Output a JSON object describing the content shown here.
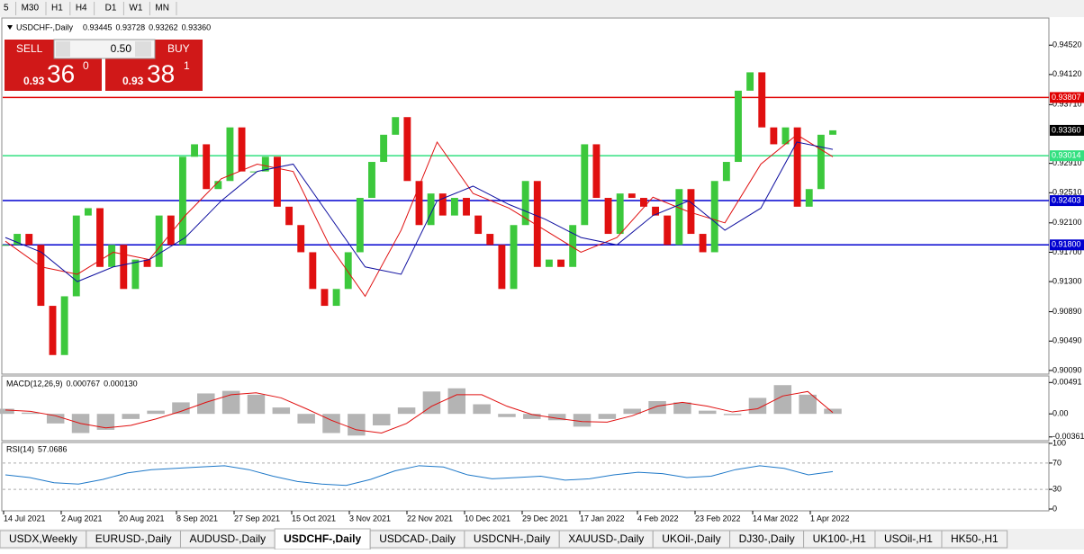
{
  "toolbar": {
    "timeframes": [
      "5",
      "M30",
      "H1",
      "H4",
      "D1",
      "W1",
      "MN"
    ]
  },
  "trade_panel": {
    "sell": "SELL",
    "buy": "BUY",
    "lot": {
      "value": 0.5,
      "label": "0.50"
    },
    "bid": {
      "prefix": "0.93",
      "big": "36",
      "sup": "0"
    },
    "ask": {
      "prefix": "0.93",
      "big": "38",
      "sup": "1"
    }
  },
  "chart_data": [
    {
      "type": "candlestick",
      "title": "USDCHF-,Daily",
      "ohlc_labels": [
        {
          "value": 0.93445,
          "label": "0.93445"
        },
        {
          "value": 0.93728,
          "label": "0.93728"
        },
        {
          "value": 0.93262,
          "label": "0.93262"
        },
        {
          "value": 0.9336,
          "label": "0.93360"
        }
      ],
      "values": [
        0.918,
        0.9195,
        0.918,
        0.9097,
        0.903,
        0.911,
        0.922,
        0.923,
        0.915,
        0.918,
        0.912,
        0.916,
        0.915,
        0.922,
        0.918,
        0.93,
        0.9317,
        0.9256,
        0.9267,
        0.934,
        0.928,
        0.928,
        0.93,
        0.9232,
        0.9207,
        0.917,
        0.912,
        0.9097,
        0.912,
        0.917,
        0.9244,
        0.9293,
        0.933,
        0.9354,
        0.9267,
        0.9207,
        0.925,
        0.922,
        0.9244,
        0.922,
        0.9195,
        0.918,
        0.912,
        0.9207,
        0.9267,
        0.915,
        0.916,
        0.915,
        0.9207,
        0.9317,
        0.9244,
        0.9195,
        0.925,
        0.9244,
        0.9232,
        0.922,
        0.918,
        0.9256,
        0.9195,
        0.917,
        0.9267,
        0.9293,
        0.939,
        0.9415,
        0.934,
        0.9317,
        0.934,
        0.9232,
        0.9256,
        0.933,
        0.9336
      ],
      "up_color": "#3cc83c",
      "down_color": "#e01010",
      "series": [
        {
          "color": "#e01010",
          "values": [
            0.9185,
            0.915,
            0.914,
            0.917,
            0.916,
            0.922,
            0.927,
            0.929,
            0.928,
            0.918,
            0.911,
            0.92,
            0.932,
            0.925,
            0.923,
            0.92,
            0.917,
            0.919,
            0.9245,
            0.9225,
            0.921,
            0.929,
            0.933,
            0.93
          ]
        },
        {
          "color": "#1010a0",
          "values": [
            0.919,
            0.917,
            0.913,
            0.915,
            0.916,
            0.919,
            0.924,
            0.928,
            0.929,
            0.922,
            0.915,
            0.914,
            0.924,
            0.926,
            0.9235,
            0.9215,
            0.919,
            0.918,
            0.922,
            0.924,
            0.92,
            0.923,
            0.932,
            0.931
          ]
        }
      ],
      "levels": [
        {
          "value": 0.93807,
          "label": "0.93807",
          "color": "#e00000"
        },
        {
          "value": 0.93014,
          "label": "0.93014",
          "color": "#33e080"
        },
        {
          "value": 0.92403,
          "label": "0.92403",
          "color": "#0000d0"
        },
        {
          "value": 0.918,
          "label": "0.91800",
          "color": "#0000d0"
        }
      ],
      "last": {
        "value": 0.9336,
        "label": "0.93360"
      },
      "ylim": [
        0.9004,
        0.9489
      ],
      "yticks": [
        {
          "value": 0.9452,
          "label": "0.94520"
        },
        {
          "value": 0.9412,
          "label": "0.94120"
        },
        {
          "value": 0.9371,
          "label": "0.93710"
        },
        {
          "value": 0.9291,
          "label": "0.92910"
        },
        {
          "value": 0.9251,
          "label": "0.92510"
        },
        {
          "value": 0.921,
          "label": "0.92100"
        },
        {
          "value": 0.917,
          "label": "0.91700"
        },
        {
          "value": 0.913,
          "label": "0.91300"
        },
        {
          "value": 0.9089,
          "label": "0.90890"
        },
        {
          "value": 0.9049,
          "label": "0.90490"
        },
        {
          "value": 0.9009,
          "label": "0.90090"
        }
      ],
      "date_labels": [
        "14 Jul 2021",
        "2 Aug 2021",
        "20 Aug 2021",
        "8 Sep 2021",
        "27 Sep 2021",
        "15 Oct 2021",
        "3 Nov 2021",
        "22 Nov 2021",
        "10 Dec 2021",
        "29 Dec 2021",
        "17 Jan 2022",
        "4 Feb 2022",
        "23 Feb 2022",
        "14 Mar 2022",
        "1 Apr 2022"
      ]
    },
    {
      "type": "macd",
      "title": "MACD(12,26,9)",
      "readings": [
        0.000767,
        {
          "value": 0.00013,
          "label": "0.000130"
        }
      ],
      "ylim": [
        -0.0042,
        0.0058
      ],
      "yticks": [
        {
          "value": 0.004913,
          "label": "0.00491"
        },
        {
          "value": 0,
          "label": "0.00"
        },
        {
          "value": -0.00361,
          "label": "-0.00361"
        }
      ],
      "series": [
        {
          "color": "#b4b4b4",
          "values": [
            0.0008,
            0.0002,
            -0.0015,
            -0.003,
            -0.0025,
            -0.0008,
            0.0005,
            0.0018,
            0.0032,
            0.0036,
            0.003,
            0.001,
            -0.0015,
            -0.003,
            -0.0034,
            -0.0018,
            0.001,
            0.0035,
            0.004,
            0.0015,
            -0.0005,
            -0.0008,
            -0.001,
            -0.002,
            -0.0008,
            0.0008,
            0.002,
            0.0018,
            0.0005,
            -0.0002,
            0.0025,
            0.0045,
            0.003,
            0.0008
          ]
        },
        {
          "color": "#e01010",
          "values": [
            0.0006,
            0.0004,
            -0.0003,
            -0.0015,
            -0.0022,
            -0.0018,
            -0.0008,
            0.0004,
            0.0018,
            0.003,
            0.0033,
            0.0025,
            0.0008,
            -0.001,
            -0.0025,
            -0.003,
            -0.0015,
            0.0012,
            0.003,
            0.003,
            0.0012,
            -0.0001,
            -0.0007,
            -0.0012,
            -0.0013,
            -0.0003,
            0.0012,
            0.0018,
            0.0012,
            0.0003,
            0.0008,
            0.0028,
            0.0035,
            0.0002
          ]
        }
      ]
    },
    {
      "type": "rsi",
      "title": "RSI(14)",
      "reading": 57.0686,
      "ylim": [
        0,
        100
      ],
      "yticks": [
        100,
        70,
        30,
        0
      ],
      "levels": [
        70,
        30
      ],
      "series": [
        {
          "color": "#1e78c8",
          "values": [
            52,
            48,
            40,
            38,
            45,
            55,
            60,
            62,
            64,
            66,
            60,
            50,
            42,
            38,
            36,
            45,
            58,
            66,
            64,
            52,
            46,
            48,
            50,
            44,
            46,
            52,
            56,
            54,
            48,
            50,
            60,
            66,
            62,
            52,
            57
          ]
        }
      ]
    }
  ],
  "tabs": {
    "active": 3,
    "items": [
      "USDX,Weekly",
      "EURUSD-,Daily",
      "AUDUSD-,Daily",
      "USDCHF-,Daily",
      "USDCAD-,Daily",
      "USDCNH-,Daily",
      "XAUUSD-,Daily",
      "UKOil-,Daily",
      "DJ30-,Daily",
      "UK100-,H1",
      "USOil-,H1",
      "HK50-,H1"
    ]
  }
}
